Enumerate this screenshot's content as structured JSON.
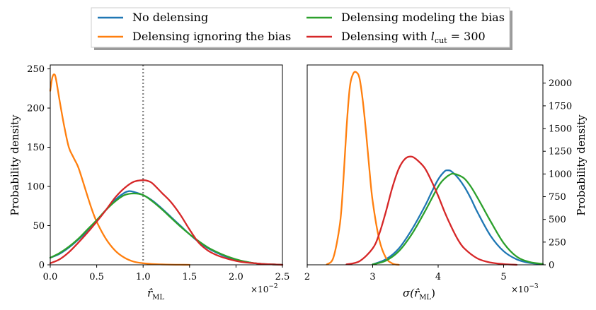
{
  "legend": {
    "entries": [
      {
        "label": "No delensing",
        "color": "#1f77b4"
      },
      {
        "label": "Delensing ignoring the bias",
        "color": "#ff7f0e"
      },
      {
        "label": "Delensing modeling the bias",
        "color": "#2ca02c"
      },
      {
        "label": "Delensing with l_cut = 300",
        "color": "#d62728",
        "label_prefix": "Delensing with ",
        "label_var": "l",
        "label_sub": "cut",
        "label_suffix": " = 300"
      }
    ],
    "placement": "top-center"
  },
  "chart_data": [
    {
      "type": "line",
      "title": "",
      "xlabel": "r̂",
      "xlabel_sub": "ML",
      "ylabel": "Probability density",
      "x_scale_note": "×10",
      "x_scale_exp": "−2",
      "xlim": [
        0.0,
        2.5
      ],
      "ylim": [
        0,
        255
      ],
      "xticks": [
        0.0,
        0.5,
        1.0,
        1.5,
        2.0,
        2.5
      ],
      "xtick_labels": [
        "0.0",
        "0.5",
        "1.0",
        "1.5",
        "2.0",
        "2.5"
      ],
      "yticks": [
        0,
        50,
        100,
        150,
        200,
        250
      ],
      "ytick_labels": [
        "0",
        "50",
        "100",
        "150",
        "200",
        "250"
      ],
      "vline": {
        "x": 1.0,
        "style": "dotted",
        "color": "#808080"
      },
      "series": [
        {
          "name": "No delensing",
          "color": "#1f77b4",
          "x": [
            0.0,
            0.1,
            0.2,
            0.3,
            0.4,
            0.5,
            0.6,
            0.7,
            0.8,
            0.85,
            0.9,
            1.0,
            1.1,
            1.2,
            1.3,
            1.4,
            1.5,
            1.6,
            1.7,
            1.8,
            1.9,
            2.0,
            2.1,
            2.2,
            2.3,
            2.4,
            2.5
          ],
          "y": [
            9,
            14,
            22,
            32,
            43,
            56,
            70,
            83,
            92,
            94,
            93,
            89,
            82,
            72,
            61,
            50,
            39,
            29,
            21,
            15,
            10,
            6,
            4,
            2,
            1,
            0.5,
            0
          ]
        },
        {
          "name": "Delensing ignoring the bias",
          "color": "#ff7f0e",
          "x": [
            0.0,
            0.02,
            0.04,
            0.06,
            0.1,
            0.15,
            0.2,
            0.25,
            0.3,
            0.35,
            0.4,
            0.45,
            0.5,
            0.6,
            0.7,
            0.8,
            0.9,
            1.0,
            1.1,
            1.2,
            1.3,
            1.4,
            1.5
          ],
          "y": [
            222,
            238,
            243,
            238,
            210,
            177,
            150,
            137,
            125,
            107,
            88,
            70,
            55,
            33,
            18,
            9,
            4,
            2,
            1,
            0.5,
            0.2,
            0.1,
            0
          ]
        },
        {
          "name": "Delensing modeling the bias",
          "color": "#2ca02c",
          "x": [
            0.0,
            0.1,
            0.2,
            0.3,
            0.4,
            0.5,
            0.6,
            0.7,
            0.8,
            0.9,
            1.0,
            1.1,
            1.2,
            1.3,
            1.4,
            1.5,
            1.6,
            1.7,
            1.8,
            1.9,
            2.0,
            2.1,
            2.2,
            2.3,
            2.4,
            2.5
          ],
          "y": [
            9,
            15,
            23,
            33,
            45,
            57,
            70,
            81,
            89,
            91,
            89,
            81,
            71,
            60,
            49,
            39,
            30,
            22,
            16,
            11,
            7,
            4,
            2,
            1,
            0.5,
            0
          ]
        },
        {
          "name": "Delensing with l_cut = 300",
          "color": "#d62728",
          "x": [
            0.0,
            0.1,
            0.2,
            0.3,
            0.4,
            0.5,
            0.6,
            0.7,
            0.8,
            0.9,
            1.0,
            1.05,
            1.1,
            1.2,
            1.3,
            1.4,
            1.5,
            1.6,
            1.7,
            1.8,
            1.9,
            2.0,
            2.1,
            2.2,
            2.3,
            2.4,
            2.5
          ],
          "y": [
            2,
            7,
            16,
            28,
            41,
            55,
            70,
            86,
            98,
            106,
            108,
            107,
            104,
            92,
            80,
            64,
            45,
            28,
            18,
            12,
            8,
            5,
            3,
            2,
            1,
            0.5,
            0
          ]
        }
      ]
    },
    {
      "type": "line",
      "title": "",
      "xlabel": "σ(r̂",
      "xlabel_sub": "ML",
      "xlabel_tail": ")",
      "ylabel": "Probability density",
      "y_axis_side": "right",
      "x_scale_note": "×10",
      "x_scale_exp": "−3",
      "xlim": [
        2.0,
        5.6
      ],
      "ylim": [
        0,
        2200
      ],
      "xticks": [
        2,
        3,
        4,
        5
      ],
      "xtick_labels": [
        "2",
        "3",
        "4",
        "5"
      ],
      "yticks": [
        0,
        250,
        500,
        750,
        1000,
        1250,
        1500,
        1750,
        2000
      ],
      "ytick_labels": [
        "0",
        "250",
        "500",
        "750",
        "1000",
        "1250",
        "1500",
        "1750",
        "2000"
      ],
      "series": [
        {
          "name": "No delensing",
          "color": "#1f77b4",
          "x": [
            3.0,
            3.2,
            3.4,
            3.6,
            3.8,
            3.9,
            4.0,
            4.1,
            4.15,
            4.2,
            4.3,
            4.4,
            4.5,
            4.6,
            4.8,
            5.0,
            5.2,
            5.4,
            5.6
          ],
          "y": [
            5,
            60,
            180,
            390,
            650,
            800,
            940,
            1030,
            1040,
            1030,
            960,
            860,
            730,
            580,
            320,
            150,
            60,
            20,
            8
          ]
        },
        {
          "name": "Delensing ignoring the bias",
          "color": "#ff7f0e",
          "x": [
            2.3,
            2.4,
            2.5,
            2.55,
            2.6,
            2.65,
            2.7,
            2.75,
            2.8,
            2.85,
            2.9,
            2.95,
            3.0,
            3.1,
            3.2,
            3.3,
            3.4
          ],
          "y": [
            5,
            80,
            450,
            900,
            1500,
            1950,
            2100,
            2120,
            2050,
            1800,
            1450,
            1050,
            700,
            280,
            80,
            15,
            0
          ]
        },
        {
          "name": "Delensing modeling the bias",
          "color": "#2ca02c",
          "x": [
            3.0,
            3.2,
            3.4,
            3.6,
            3.8,
            4.0,
            4.1,
            4.2,
            4.25,
            4.3,
            4.4,
            4.5,
            4.6,
            4.7,
            4.8,
            5.0,
            5.2,
            5.4,
            5.6
          ],
          "y": [
            5,
            45,
            150,
            340,
            590,
            860,
            950,
            1000,
            1000,
            990,
            950,
            860,
            740,
            610,
            480,
            240,
            90,
            30,
            10
          ]
        },
        {
          "name": "Delensing with l_cut = 300",
          "color": "#d62728",
          "x": [
            2.6,
            2.8,
            3.0,
            3.1,
            3.2,
            3.3,
            3.4,
            3.5,
            3.6,
            3.7,
            3.8,
            3.9,
            4.0,
            4.1,
            4.2,
            4.3,
            4.4,
            4.6,
            4.8,
            5.0,
            5.2
          ],
          "y": [
            5,
            40,
            180,
            340,
            580,
            850,
            1060,
            1170,
            1190,
            1140,
            1060,
            920,
            760,
            580,
            420,
            280,
            180,
            70,
            25,
            8,
            0
          ]
        }
      ]
    }
  ]
}
